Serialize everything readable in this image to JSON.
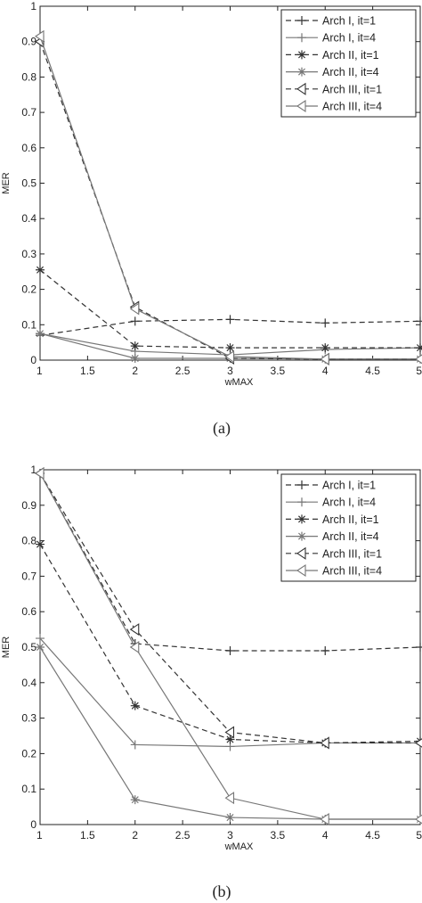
{
  "chart_data": [
    {
      "type": "line",
      "caption": "(a)",
      "xlabel": "wMAX",
      "ylabel": "MER",
      "xlim": [
        1,
        5
      ],
      "ylim": [
        0,
        1
      ],
      "xticks": [
        "1",
        "1.5",
        "2",
        "2.5",
        "3",
        "3.5",
        "4",
        "4.5",
        "5"
      ],
      "yticks": [
        "0",
        "0.1",
        "0.2",
        "0.3",
        "0.4",
        "0.5",
        "0.6",
        "0.7",
        "0.8",
        "0.9",
        "1"
      ],
      "grid": false,
      "legend_position": "top-right",
      "x": [
        1,
        2,
        3,
        4,
        5
      ],
      "series": [
        {
          "name": "Arch I, it=1",
          "values": [
            0.07,
            0.11,
            0.115,
            0.105,
            0.11
          ],
          "dash": true,
          "marker": "plus",
          "color": "#333333"
        },
        {
          "name": "Arch I, it=4",
          "values": [
            0.075,
            0.025,
            0.015,
            0.03,
            0.035
          ],
          "dash": false,
          "marker": "plus",
          "color": "#777777"
        },
        {
          "name": "Arch II, it=1",
          "values": [
            0.255,
            0.04,
            0.035,
            0.035,
            0.035
          ],
          "dash": true,
          "marker": "star",
          "color": "#333333"
        },
        {
          "name": "Arch II, it=4",
          "values": [
            0.075,
            0.005,
            0.005,
            0.003,
            0.003
          ],
          "dash": false,
          "marker": "star",
          "color": "#777777"
        },
        {
          "name": "Arch III, it=1",
          "values": [
            0.9,
            0.15,
            0.005,
            0.003,
            0.003
          ],
          "dash": true,
          "marker": "triangle",
          "color": "#333333"
        },
        {
          "name": "Arch III, it=4",
          "values": [
            0.915,
            0.145,
            0.01,
            0.003,
            0.003
          ],
          "dash": false,
          "marker": "triangle",
          "color": "#777777"
        }
      ]
    },
    {
      "type": "line",
      "caption": "(b)",
      "xlabel": "wMAX",
      "ylabel": "MER",
      "xlim": [
        1,
        5
      ],
      "ylim": [
        0,
        1
      ],
      "xticks": [
        "1",
        "1.5",
        "2",
        "2.5",
        "3",
        "3.5",
        "4",
        "4.5",
        "5"
      ],
      "yticks": [
        "0",
        "0.1",
        "0.2",
        "0.3",
        "0.4",
        "0.5",
        "0.6",
        "0.7",
        "0.8",
        "0.9",
        "1"
      ],
      "grid": false,
      "legend_position": "top-right",
      "x": [
        1,
        2,
        3,
        4,
        5
      ],
      "series": [
        {
          "name": "Arch I, it=1",
          "values": [
            0.99,
            0.51,
            0.49,
            0.49,
            0.5
          ],
          "dash": true,
          "marker": "plus",
          "color": "#333333"
        },
        {
          "name": "Arch I, it=4",
          "values": [
            0.525,
            0.225,
            0.22,
            0.23,
            0.23
          ],
          "dash": false,
          "marker": "plus",
          "color": "#777777"
        },
        {
          "name": "Arch II, it=1",
          "values": [
            0.79,
            0.335,
            0.24,
            0.23,
            0.235
          ],
          "dash": true,
          "marker": "star",
          "color": "#333333"
        },
        {
          "name": "Arch II, it=4",
          "values": [
            0.5,
            0.07,
            0.02,
            0.015,
            0.015
          ],
          "dash": false,
          "marker": "star",
          "color": "#777777"
        },
        {
          "name": "Arch III, it=1",
          "values": [
            0.99,
            0.55,
            0.26,
            0.23,
            0.23
          ],
          "dash": true,
          "marker": "triangle",
          "color": "#333333"
        },
        {
          "name": "Arch III, it=4",
          "values": [
            0.99,
            0.5,
            0.075,
            0.015,
            0.015
          ],
          "dash": false,
          "marker": "triangle",
          "color": "#777777"
        }
      ]
    }
  ]
}
